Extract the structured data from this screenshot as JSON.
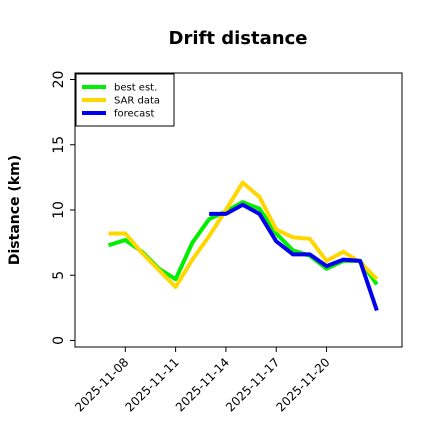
{
  "chart_data": {
    "type": "line",
    "title": "Drift distance",
    "xlabel": "",
    "ylabel": "Distance (km)",
    "ylim": [
      -0.5,
      20.5
    ],
    "yticks": [
      0,
      5,
      10,
      15,
      20
    ],
    "xlim": [
      "2025-11-05T00:00",
      "2025-11-24T12:00"
    ],
    "xticks": [
      "2025-11-08",
      "2025-11-11",
      "2025-11-14",
      "2025-11-17",
      "2025-11-20"
    ],
    "grid": false,
    "legend_position": "top-left",
    "series": [
      {
        "name": "best est.",
        "color": "#00ee00",
        "x": [
          "2025-11-07",
          "2025-11-08",
          "2025-11-09",
          "2025-11-10",
          "2025-11-11",
          "2025-11-12",
          "2025-11-13",
          "2025-11-14",
          "2025-11-15",
          "2025-11-16",
          "2025-11-17",
          "2025-11-18",
          "2025-11-19",
          "2025-11-20",
          "2025-11-21",
          "2025-11-22",
          "2025-11-23"
        ],
        "y": [
          7.3,
          7.7,
          6.8,
          5.5,
          4.7,
          7.5,
          9.3,
          9.9,
          10.6,
          10.1,
          8.2,
          6.9,
          6.5,
          5.5,
          6.1,
          6.1,
          4.3
        ]
      },
      {
        "name": "SAR data",
        "color": "#ffd700",
        "x": [
          "2025-11-07",
          "2025-11-08",
          "2025-11-09",
          "2025-11-10",
          "2025-11-11",
          "2025-11-12",
          "2025-11-13",
          "2025-11-14",
          "2025-11-15",
          "2025-11-16",
          "2025-11-17",
          "2025-11-18",
          "2025-11-19",
          "2025-11-20",
          "2025-11-21",
          "2025-11-22",
          "2025-11-23"
        ],
        "y": [
          8.2,
          8.2,
          6.7,
          5.4,
          4.1,
          6.2,
          8.0,
          10.0,
          12.1,
          11.0,
          8.5,
          7.9,
          7.8,
          6.1,
          6.8,
          6.0,
          4.7
        ]
      },
      {
        "name": "forecast",
        "color": "#0000ee",
        "x": [
          "2025-11-13",
          "2025-11-14",
          "2025-11-15",
          "2025-11-16",
          "2025-11-17",
          "2025-11-18",
          "2025-11-19",
          "2025-11-20",
          "2025-11-21",
          "2025-11-22",
          "2025-11-23"
        ],
        "y": [
          9.7,
          9.7,
          10.4,
          9.7,
          7.6,
          6.6,
          6.6,
          5.7,
          6.2,
          6.1,
          2.3
        ]
      }
    ]
  }
}
